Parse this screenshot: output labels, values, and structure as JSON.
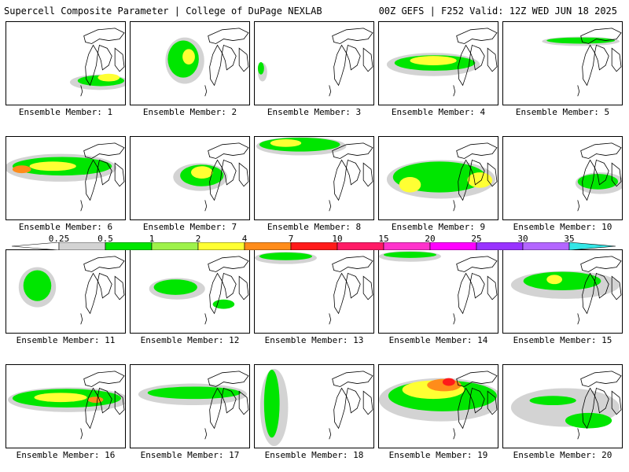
{
  "header": {
    "left_title": "Supercell Composite Parameter | College of DuPage NEXLAB",
    "right_title": "00Z GEFS | F252 Valid: 12Z WED JUN 18 2025"
  },
  "members": [
    {
      "label": "Ensemble Member: 1"
    },
    {
      "label": "Ensemble Member: 2"
    },
    {
      "label": "Ensemble Member: 3"
    },
    {
      "label": "Ensemble Member: 4"
    },
    {
      "label": "Ensemble Member: 5"
    },
    {
      "label": "Ensemble Member: 6"
    },
    {
      "label": "Ensemble Member: 7"
    },
    {
      "label": "Ensemble Member: 8"
    },
    {
      "label": "Ensemble Member: 9"
    },
    {
      "label": "Ensemble Member: 10"
    },
    {
      "label": "Ensemble Member: 11"
    },
    {
      "label": "Ensemble Member: 12"
    },
    {
      "label": "Ensemble Member: 13"
    },
    {
      "label": "Ensemble Member: 14"
    },
    {
      "label": "Ensemble Member: 15"
    },
    {
      "label": "Ensemble Member: 16"
    },
    {
      "label": "Ensemble Member: 17"
    },
    {
      "label": "Ensemble Member: 18"
    },
    {
      "label": "Ensemble Member: 19"
    },
    {
      "label": "Ensemble Member: 20"
    }
  ],
  "colorbar": {
    "ticks": [
      "0.25",
      "0.5",
      "1",
      "2",
      "4",
      "7",
      "10",
      "15",
      "20",
      "25",
      "30",
      "35"
    ],
    "colors": [
      "#d3d3d3",
      "#00e600",
      "#9ef24a",
      "#ffff33",
      "#ff8c1a",
      "#ff1a1a",
      "#ff1a66",
      "#ff33cc",
      "#ff00ff",
      "#9933ff",
      "#b366ff",
      "#33e6e6"
    ]
  }
}
